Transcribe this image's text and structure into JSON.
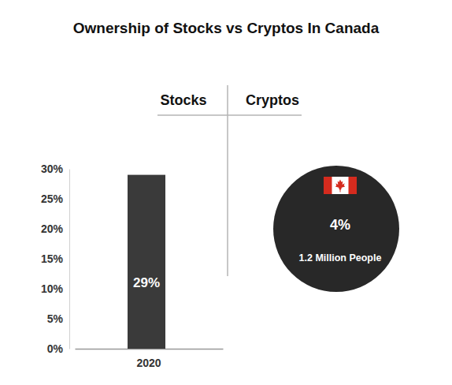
{
  "chart_data": [
    {
      "type": "bar",
      "title": "Ownership of Stocks vs Cryptos In Canada",
      "subtitle": "Stocks",
      "categories": [
        "2020"
      ],
      "values": [
        29
      ],
      "value_labels": [
        "29%"
      ],
      "data_labels": true,
      "color": "#3a3a3a",
      "ylim": [
        0,
        30
      ],
      "yticks": [
        {
          "value": 0,
          "label": "0%"
        },
        {
          "value": 5,
          "label": "5%"
        },
        {
          "value": 10,
          "label": "10%"
        },
        {
          "value": 15,
          "label": "15%"
        },
        {
          "value": 20,
          "label": "20%"
        },
        {
          "value": 25,
          "label": "25%"
        },
        {
          "value": 30,
          "label": "30%"
        }
      ]
    },
    {
      "type": "circle",
      "subtitle": "Cryptos",
      "values": [
        4
      ],
      "value_labels": [
        "4%"
      ],
      "data_labels": true,
      "annotations": [
        "1.2 Million People"
      ],
      "color": "#282828"
    }
  ]
}
